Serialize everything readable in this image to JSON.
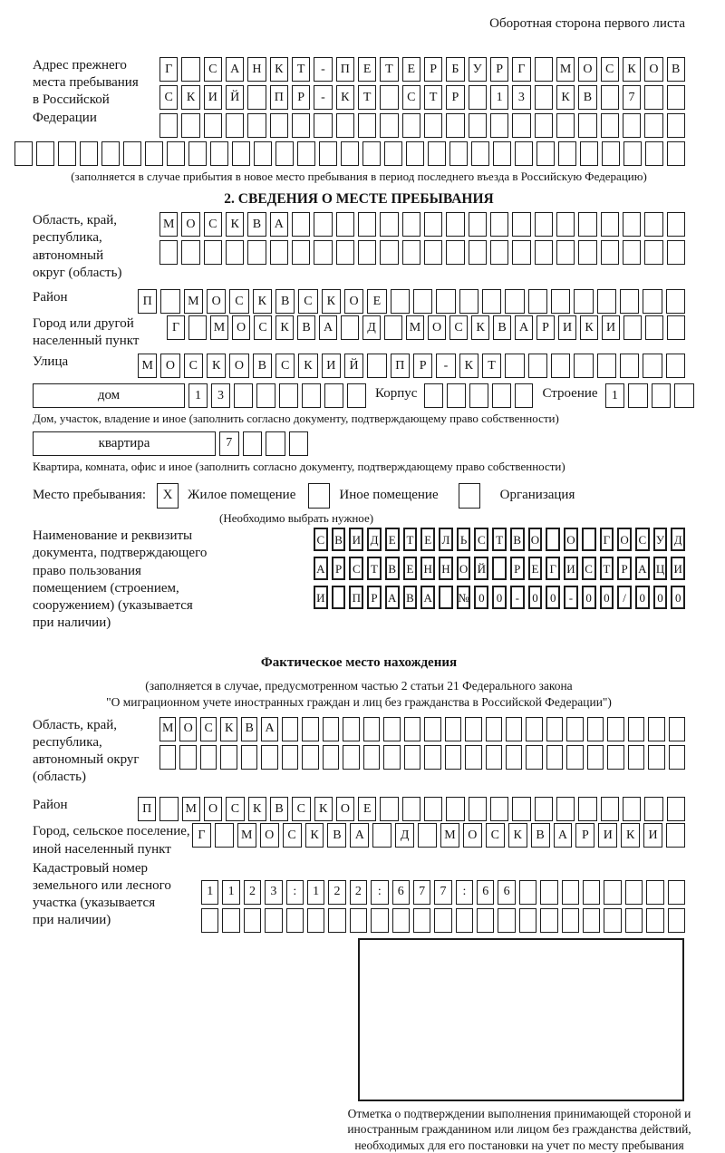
{
  "page": {
    "corner_note": "Оборотная сторона первого листа"
  },
  "prev_address": {
    "label": "Адрес прежнего\nместа пребывания\nв Российской\nФедерации",
    "rows": [
      [
        "Г",
        "",
        "С",
        "А",
        "Н",
        "К",
        "Т",
        "-",
        "П",
        "Е",
        "Т",
        "Е",
        "Р",
        "Б",
        "У",
        "Р",
        "Г",
        "",
        "М",
        "О",
        "С",
        "К",
        "О",
        "В"
      ],
      [
        "С",
        "К",
        "И",
        "Й",
        "",
        "П",
        "Р",
        "-",
        "К",
        "Т",
        "",
        "С",
        "Т",
        "Р",
        "",
        "1",
        "3",
        "",
        "К",
        "В",
        "",
        "7",
        "",
        ""
      ],
      [
        "",
        "",
        "",
        "",
        "",
        "",
        "",
        "",
        "",
        "",
        "",
        "",
        "",
        "",
        "",
        "",
        "",
        "",
        "",
        "",
        "",
        "",
        "",
        ""
      ]
    ],
    "full_row": [
      "",
      "",
      "",
      "",
      "",
      "",
      "",
      "",
      "",
      "",
      "",
      "",
      "",
      "",
      "",
      "",
      "",
      "",
      "",
      "",
      "",
      "",
      "",
      "",
      "",
      "",
      "",
      "",
      "",
      "",
      ""
    ],
    "note": "(заполняется в случае прибытия в новое место пребывания в период последнего въезда в Российскую Федерацию)"
  },
  "section2": {
    "title": "2. СВЕДЕНИЯ О МЕСТЕ ПРЕБЫВАНИЯ",
    "region": {
      "label": "Область, край,\nреспублика,\nавтономный\nокруг (область)",
      "rows": [
        [
          "М",
          "О",
          "С",
          "К",
          "В",
          "А",
          "",
          "",
          "",
          "",
          "",
          "",
          "",
          "",
          "",
          "",
          "",
          "",
          "",
          "",
          "",
          "",
          "",
          ""
        ],
        [
          "",
          "",
          "",
          "",
          "",
          "",
          "",
          "",
          "",
          "",
          "",
          "",
          "",
          "",
          "",
          "",
          "",
          "",
          "",
          "",
          "",
          "",
          "",
          ""
        ]
      ]
    },
    "district": {
      "label": "Район",
      "row": [
        "П",
        "",
        "М",
        "О",
        "С",
        "К",
        "В",
        "С",
        "К",
        "О",
        "Е",
        "",
        "",
        "",
        "",
        "",
        "",
        "",
        "",
        "",
        "",
        "",
        "",
        ""
      ]
    },
    "city": {
      "label": "Город или другой\nнаселенный пункт",
      "row": [
        "Г",
        "",
        "М",
        "О",
        "С",
        "К",
        "В",
        "А",
        "",
        "Д",
        "",
        "М",
        "О",
        "С",
        "К",
        "В",
        "А",
        "Р",
        "И",
        "К",
        "И",
        "",
        "",
        ""
      ]
    },
    "street": {
      "label": "Улица",
      "row": [
        "М",
        "О",
        "С",
        "К",
        "О",
        "В",
        "С",
        "К",
        "И",
        "Й",
        "",
        "П",
        "Р",
        "-",
        "К",
        "Т",
        "",
        "",
        "",
        "",
        "",
        "",
        "",
        ""
      ]
    },
    "house": {
      "box_label": "дом",
      "cells": [
        "1",
        "3",
        "",
        "",
        "",
        "",
        "",
        ""
      ],
      "korpus_label": "Корпус",
      "korpus_cells": [
        "",
        "",
        "",
        "",
        ""
      ],
      "stroenie_label": "Строение",
      "stroenie_cells": [
        "1",
        "",
        "",
        ""
      ]
    },
    "house_note": "Дом, участок, владение и иное (заполнить согласно документу, подтверждающему право собственности)",
    "apartment": {
      "box_label": "квартира",
      "cells": [
        "7",
        "",
        "",
        ""
      ]
    },
    "apartment_note": "Квартира, комната, офис и иное (заполнить согласно документу, подтверждающему право собственности)",
    "stay_type": {
      "label": "Место пребывания:",
      "options": [
        {
          "label": "Жилое помещение",
          "checked": true
        },
        {
          "label": "Иное помещение",
          "checked": false
        },
        {
          "label": "Организация",
          "checked": false
        }
      ],
      "note": "(Необходимо выбрать нужное)"
    },
    "document": {
      "label": "Наименование и реквизиты\nдокумента, подтверждающего\nправо пользования\nпомещением (строением,\nсооружением) (указывается\nпри наличии)",
      "rows": [
        [
          "С",
          "В",
          "И",
          "Д",
          "Е",
          "Т",
          "Е",
          "Л",
          "Ь",
          "С",
          "Т",
          "В",
          "О",
          "",
          "О",
          "",
          "Г",
          "О",
          "С",
          "У",
          "Д"
        ],
        [
          "А",
          "Р",
          "С",
          "Т",
          "В",
          "Е",
          "Н",
          "Н",
          "О",
          "Й",
          "",
          "Р",
          "Е",
          "Г",
          "И",
          "С",
          "Т",
          "Р",
          "А",
          "Ц",
          "И"
        ],
        [
          "И",
          "",
          "П",
          "Р",
          "А",
          "В",
          "А",
          "",
          "№",
          "0",
          "0",
          "-",
          "0",
          "0",
          "-",
          "0",
          "0",
          "/",
          "0",
          "0",
          "0"
        ]
      ]
    }
  },
  "actual_location": {
    "title": "Фактическое место нахождения",
    "note_line1": "(заполняется в случае, предусмотренном частью 2 статьи 21 Федерального закона",
    "note_line2": "\"О миграционном учете иностранных граждан и лиц без гражданства в Российской Федерации\")",
    "region": {
      "label": "Область, край,\nреспублика,\nавтономный округ\n(область)",
      "rows": [
        [
          "М",
          "О",
          "С",
          "К",
          "В",
          "А",
          "",
          "",
          "",
          "",
          "",
          "",
          "",
          "",
          "",
          "",
          "",
          "",
          "",
          "",
          "",
          "",
          "",
          "",
          "",
          ""
        ],
        [
          "",
          "",
          "",
          "",
          "",
          "",
          "",
          "",
          "",
          "",
          "",
          "",
          "",
          "",
          "",
          "",
          "",
          "",
          "",
          "",
          "",
          "",
          "",
          "",
          "",
          ""
        ]
      ]
    },
    "district": {
      "label": "Район",
      "row": [
        "П",
        "",
        "М",
        "О",
        "С",
        "К",
        "В",
        "С",
        "К",
        "О",
        "Е",
        "",
        "",
        "",
        "",
        "",
        "",
        "",
        "",
        "",
        "",
        "",
        "",
        "",
        ""
      ]
    },
    "city": {
      "label": "Город, сельское поселение,\nиной населенный пункт",
      "row": [
        "Г",
        "",
        "М",
        "О",
        "С",
        "К",
        "В",
        "А",
        "",
        "Д",
        "",
        "М",
        "О",
        "С",
        "К",
        "В",
        "А",
        "Р",
        "И",
        "К",
        "И",
        ""
      ]
    },
    "cadastral": {
      "label": "Кадастровый номер\nземельного или лесного\nучастка (указывается\nпри наличии)",
      "rows": [
        [
          "1",
          "1",
          "2",
          "3",
          ":",
          "1",
          "2",
          "2",
          ":",
          "6",
          "7",
          "7",
          ":",
          "6",
          "6",
          "",
          "",
          "",
          "",
          "",
          "",
          "",
          ""
        ],
        [
          "",
          "",
          "",
          "",
          "",
          "",
          "",
          "",
          "",
          "",
          "",
          "",
          "",
          "",
          "",
          "",
          "",
          "",
          "",
          "",
          "",
          "",
          ""
        ]
      ]
    },
    "stamp_note": "Отметка о подтверждении выполнения принимающей стороной и иностранным гражданином или лицом без гражданства действий, необходимых для его постановки на учет по месту пребывания"
  }
}
